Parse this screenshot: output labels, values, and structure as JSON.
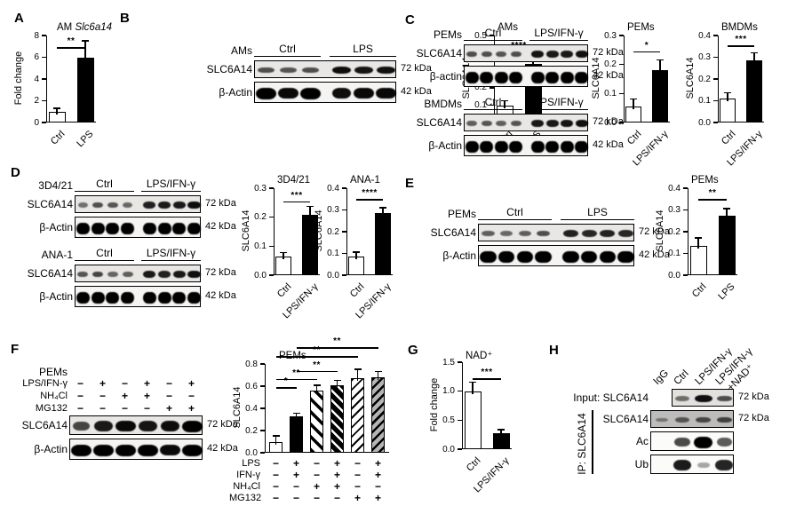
{
  "panels": {
    "a": {
      "letter": "A"
    },
    "b": {
      "letter": "B"
    },
    "c": {
      "letter": "C"
    },
    "d": {
      "letter": "D"
    },
    "e": {
      "letter": "E"
    },
    "f": {
      "letter": "F"
    },
    "g": {
      "letter": "G"
    },
    "h": {
      "letter": "H"
    }
  },
  "chart_data": [
    {
      "panel": "A",
      "type": "bar",
      "title": "AM ",
      "title_italic": "Slc6a14",
      "ylabel": "Fold change",
      "ylim": [
        0,
        8
      ],
      "yticks": [
        "0",
        "2",
        "4",
        "6",
        "8"
      ],
      "categories": [
        "Ctrl",
        "LPS"
      ],
      "values": [
        1.0,
        6.0
      ],
      "errors": [
        0.3,
        1.5
      ],
      "fills": [
        "white",
        "black"
      ],
      "sig": [
        {
          "from": 0,
          "to": 1,
          "label": "**",
          "y": 6.9
        }
      ]
    },
    {
      "panel": "B",
      "type": "bar",
      "title": "AMs",
      "ylabel": "SLC6A14",
      "ylim": [
        0,
        0.5
      ],
      "yticks": [
        "0.0",
        "0.1",
        "0.2",
        "0.3",
        "0.4",
        "0.5"
      ],
      "categories": [
        "Ctrl",
        "LPS"
      ],
      "values": [
        0.095,
        0.335
      ],
      "errors": [
        0.03,
        0.04
      ],
      "fills": [
        "white",
        "black"
      ],
      "sig": [
        {
          "from": 0,
          "to": 1,
          "label": "****",
          "y": 0.41
        }
      ]
    },
    {
      "panel": "C",
      "type": "bar",
      "title": "PEMs",
      "ylabel": "SLC6A14",
      "ylim": [
        0,
        0.3
      ],
      "yticks": [
        "0.0",
        "0.1",
        "0.2",
        "0.3"
      ],
      "categories": [
        "Ctrl",
        "LPS/IFN-γ"
      ],
      "values": [
        0.055,
        0.18
      ],
      "errors": [
        0.025,
        0.035
      ],
      "fills": [
        "white",
        "black"
      ],
      "sig": [
        {
          "from": 0,
          "to": 1,
          "label": "*",
          "y": 0.245
        }
      ]
    },
    {
      "panel": "C",
      "type": "bar",
      "title": "BMDMs",
      "ylabel": "SLC6A14",
      "ylim": [
        0,
        0.4
      ],
      "yticks": [
        "0.0",
        "0.1",
        "0.2",
        "0.3",
        "0.4"
      ],
      "categories": [
        "Ctrl",
        "LPS/IFN-γ"
      ],
      "values": [
        0.11,
        0.285
      ],
      "errors": [
        0.025,
        0.035
      ],
      "fills": [
        "white",
        "black"
      ],
      "sig": [
        {
          "from": 0,
          "to": 1,
          "label": "***",
          "y": 0.355
        }
      ]
    },
    {
      "panel": "D",
      "type": "bar",
      "title": "3D4/21",
      "ylabel": "SLC6A14",
      "ylim": [
        0,
        0.3
      ],
      "yticks": [
        "0.0",
        "0.1",
        "0.2",
        "0.3"
      ],
      "categories": [
        "Ctrl",
        "LPS/IFN-γ"
      ],
      "values": [
        0.065,
        0.207
      ],
      "errors": [
        0.012,
        0.03
      ],
      "fills": [
        "white",
        "black"
      ],
      "sig": [
        {
          "from": 0,
          "to": 1,
          "label": "***",
          "y": 0.255
        }
      ]
    },
    {
      "panel": "D",
      "type": "bar",
      "title": "ANA-1",
      "ylabel": "SLC6A14",
      "ylim": [
        0,
        0.4
      ],
      "yticks": [
        "0.0",
        "0.1",
        "0.2",
        "0.3",
        "0.4"
      ],
      "categories": [
        "Ctrl",
        "LPS/IFN-γ"
      ],
      "values": [
        0.085,
        0.285
      ],
      "errors": [
        0.02,
        0.025
      ],
      "fills": [
        "white",
        "black"
      ],
      "sig": [
        {
          "from": 0,
          "to": 1,
          "label": "****",
          "y": 0.35
        }
      ]
    },
    {
      "panel": "E",
      "type": "bar",
      "title": "PEMs",
      "ylabel": "SLC6A14",
      "ylim": [
        0,
        0.4
      ],
      "yticks": [
        "0.0",
        "0.1",
        "0.2",
        "0.3",
        "0.4"
      ],
      "categories": [
        "Ctrl",
        "LPS"
      ],
      "values": [
        0.135,
        0.275
      ],
      "errors": [
        0.035,
        0.03
      ],
      "fills": [
        "white",
        "black"
      ],
      "sig": [
        {
          "from": 0,
          "to": 1,
          "label": "**",
          "y": 0.35
        }
      ]
    },
    {
      "panel": "F",
      "type": "bar",
      "title": "PEMs",
      "ylabel": "SLC6A14",
      "ylim": [
        0,
        0.8
      ],
      "yticks": [
        "0.0",
        "0.2",
        "0.4",
        "0.6",
        "0.8"
      ],
      "values": [
        0.1,
        0.33,
        0.56,
        0.61,
        0.67,
        0.68
      ],
      "errors": [
        0.05,
        0.025,
        0.045,
        0.04,
        0.08,
        0.05
      ],
      "fills": [
        "white",
        "black",
        "hatch-down-bold",
        "hatch-down-black",
        "hatch-up-thin",
        "hatch-up-gray"
      ],
      "sig": [
        {
          "from": 0,
          "to": 1,
          "label": "*",
          "y": 0.59
        },
        {
          "from": 0,
          "to": 2,
          "label": "**",
          "y": 0.665
        },
        {
          "from": 1,
          "to": 3,
          "label": "**",
          "y": 0.74
        },
        {
          "from": 0,
          "to": 4,
          "label": "**",
          "y": 0.87
        },
        {
          "from": 1,
          "to": 5,
          "label": "**",
          "y": 0.95
        }
      ],
      "xmatrix": [
        {
          "label": "LPS",
          "values": [
            "−",
            "+",
            "−",
            "+",
            "−",
            "+"
          ]
        },
        {
          "label": "IFN-γ",
          "values": [
            "−",
            "+",
            "−",
            "+",
            "−",
            "+"
          ]
        },
        {
          "label": "NH₄Cl",
          "values": [
            "−",
            "−",
            "+",
            "+",
            "−",
            "−"
          ]
        },
        {
          "label": "MG132",
          "values": [
            "−",
            "−",
            "−",
            "−",
            "+",
            "+"
          ]
        }
      ]
    },
    {
      "panel": "G",
      "type": "bar",
      "title": "NAD⁺",
      "ylabel": "Fold change",
      "ylim": [
        0,
        1.5
      ],
      "yticks": [
        "0.0",
        "0.5",
        "1.0",
        "1.5"
      ],
      "categories": [
        "Ctrl",
        "LPS/IFN-γ"
      ],
      "values": [
        1.0,
        0.27
      ],
      "errors": [
        0.15,
        0.06
      ],
      "fills": [
        "white",
        "black"
      ],
      "sig": [
        {
          "from": 0,
          "to": 1,
          "label": "***",
          "y": 1.22
        }
      ]
    }
  ],
  "blots": {
    "b": {
      "cell": "AMs",
      "lane_count": 6,
      "groups": [
        {
          "label": "Ctrl",
          "lanes": 3
        },
        {
          "label": "LPS",
          "lanes": 3
        }
      ],
      "rows": [
        {
          "label": "SLC6A14",
          "kda": "72 kDa",
          "type": "thin",
          "bg": "#e9e7e4",
          "bands": [
            0.55,
            0.5,
            0.55,
            0.92,
            0.88,
            0.9
          ]
        },
        {
          "label": "β-Actin",
          "kda": "42 kDa",
          "type": "thick",
          "bg": "#f5f4f2",
          "bands": [
            1,
            0.95,
            1,
            0.92,
            0.95,
            0.95
          ]
        }
      ]
    },
    "c_pems": {
      "cell": "PEMs",
      "lane_count": 8,
      "groups": [
        {
          "label": "Ctrl",
          "lanes": 4
        },
        {
          "label": "LPS/IFN-γ",
          "lanes": 4
        }
      ],
      "rows": [
        {
          "label": "SLC6A14",
          "kda": "72 kDa",
          "type": "thin",
          "bg": "#e9e7e4",
          "bands": [
            0.55,
            0.55,
            0.5,
            0.55,
            0.88,
            0.85,
            0.85,
            0.9
          ]
        },
        {
          "label": "β-actin",
          "kda": "42 kDa",
          "type": "thick",
          "bg": "#f5f4f2",
          "bands": [
            1,
            1,
            1,
            1,
            1,
            1,
            1,
            1
          ]
        }
      ]
    },
    "c_bmdms": {
      "cell": "BMDMs",
      "lane_count": 8,
      "groups": [
        {
          "label": "Ctrl",
          "lanes": 4
        },
        {
          "label": "LPS/IFN-γ",
          "lanes": 4
        }
      ],
      "rows": [
        {
          "label": "SLC6A14",
          "kda": "72 kDa",
          "type": "thin",
          "bg": "#e9e7e4",
          "bands": [
            0.45,
            0.5,
            0.45,
            0.5,
            0.85,
            0.85,
            0.88,
            0.9
          ]
        },
        {
          "label": "β-Actin",
          "kda": "42 kDa",
          "type": "thick",
          "bg": "#f5f4f2",
          "bands": [
            1,
            1,
            1,
            1,
            1,
            1,
            1,
            1
          ]
        }
      ]
    },
    "d_3d421": {
      "cell": "3D4/21",
      "lane_count": 8,
      "groups": [
        {
          "label": "Ctrl",
          "lanes": 4
        },
        {
          "label": "LPS/IFN-γ",
          "lanes": 4
        }
      ],
      "rows": [
        {
          "label": "SLC6A14",
          "kda": "72 kDa",
          "type": "thin",
          "bg": "#e9e7e4",
          "bands": [
            0.35,
            0.55,
            0.5,
            0.4,
            0.82,
            0.85,
            0.85,
            0.92
          ]
        },
        {
          "label": "β-Actin",
          "kda": "42 kDa",
          "type": "thick",
          "bg": "#f5f4f2",
          "bands": [
            1,
            1,
            1,
            1,
            1,
            1,
            1,
            1
          ]
        }
      ]
    },
    "d_ana1": {
      "cell": "ANA-1",
      "lane_count": 8,
      "groups": [
        {
          "label": "Ctrl",
          "lanes": 4
        },
        {
          "label": "LPS/IFN-γ",
          "lanes": 4
        }
      ],
      "rows": [
        {
          "label": "SLC6A14",
          "kda": "72 kDa",
          "type": "thin",
          "bg": "#e9e7e4",
          "bands": [
            0.5,
            0.6,
            0.42,
            0.45,
            0.85,
            0.82,
            0.85,
            0.9
          ]
        },
        {
          "label": "β-Actin",
          "kda": "42 kDa",
          "type": "thick",
          "bg": "#f5f4f2",
          "bands": [
            1,
            1,
            1,
            1,
            1,
            1,
            1,
            1
          ]
        }
      ]
    },
    "e": {
      "cell": "PEMs",
      "lane_count": 8,
      "groups": [
        {
          "label": "Ctrl",
          "lanes": 4
        },
        {
          "label": "LPS",
          "lanes": 4
        }
      ],
      "rows": [
        {
          "label": "SLC6A14",
          "kda": "72 kDa",
          "type": "thin",
          "bg": "#e9e7e4",
          "bands": [
            0.45,
            0.4,
            0.45,
            0.55,
            0.82,
            0.78,
            0.8,
            0.78
          ]
        },
        {
          "label": "β-Actin",
          "kda": "42 kDa",
          "type": "thick",
          "bg": "#f5f4f2",
          "bands": [
            1,
            1,
            1,
            1,
            1,
            1,
            1,
            1
          ]
        }
      ]
    },
    "f": {
      "cell": "PEMs",
      "lane_count": 6,
      "treatments": [
        {
          "label": "LPS/IFN-γ",
          "values": [
            "−",
            "+",
            "−",
            "+",
            "−",
            "+"
          ]
        },
        {
          "label": "NH₄Cl",
          "values": [
            "−",
            "−",
            "+",
            "+",
            "−",
            "−"
          ]
        },
        {
          "label": "MG132",
          "values": [
            "−",
            "−",
            "−",
            "−",
            "+",
            "+"
          ]
        }
      ],
      "rows": [
        {
          "label": "SLC6A14",
          "kda": "72 kDa",
          "type": "med",
          "bg": "#e9e7e4",
          "bands": [
            0.6,
            0.85,
            0.95,
            0.88,
            0.92,
            1
          ]
        },
        {
          "label": "β-Actin",
          "kda": "42 kDa",
          "type": "thick",
          "bg": "#f5f4f2",
          "bands": [
            1,
            1,
            1,
            1,
            0.95,
            1
          ]
        }
      ]
    },
    "h": {
      "ip_label": "IP: SLC6A14",
      "lane_count": 4,
      "lane_labels": [
        "IgG",
        "Ctrl",
        "LPS/IFN-γ",
        "LPS/IFN-γ|+NAD⁺"
      ],
      "rows": [
        {
          "label": "Input: SLC6A14",
          "kda": "72 kDa",
          "type": "thin",
          "bg": "#e3e1dd",
          "from": 1,
          "bands": [
            0.35,
            0.9,
            0.55
          ]
        },
        {
          "label": "SLC6A14",
          "kda": "72 kDa",
          "type": "thin",
          "bg": "#bdbcba",
          "bands": [
            0.18,
            0.42,
            0.5,
            0.55
          ]
        },
        {
          "label": "Ac",
          "type": "med",
          "bg": "#fbfbfa",
          "bands": [
            0,
            0.6,
            1,
            0.5
          ]
        },
        {
          "label": "Ub",
          "type": "med",
          "bg": "#fbfbfa",
          "bands": [
            0,
            0.85,
            0.1,
            0.8
          ]
        }
      ]
    }
  }
}
